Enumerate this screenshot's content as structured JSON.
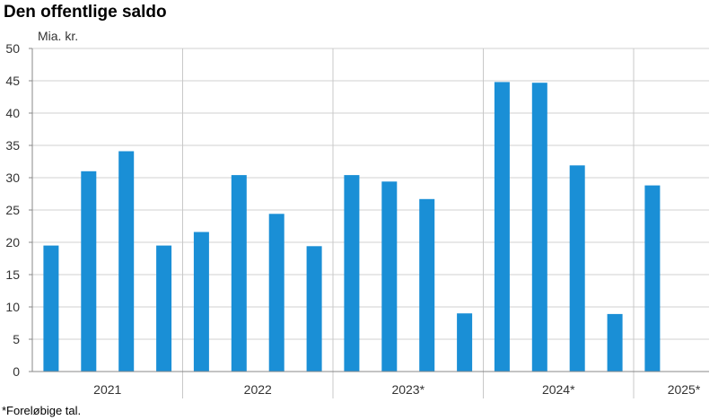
{
  "chart_data": {
    "type": "bar",
    "title": "Den offentlige saldo",
    "ylabel": "Mia. kr.",
    "xlabel": "",
    "ylim": [
      0,
      50
    ],
    "yticks": [
      0,
      5,
      10,
      15,
      20,
      25,
      30,
      35,
      40,
      45,
      50
    ],
    "grid": true,
    "bar_color": "#1a8fd6",
    "year_groups": [
      {
        "label": "2021",
        "values": [
          19.5,
          31.0,
          34.1,
          19.5
        ]
      },
      {
        "label": "2022",
        "values": [
          21.6,
          30.4,
          24.4,
          19.4
        ]
      },
      {
        "label": "2023*",
        "values": [
          30.4,
          29.4,
          26.7,
          9.0
        ]
      },
      {
        "label": "2024*",
        "values": [
          44.8,
          44.7,
          31.9,
          8.9
        ]
      },
      {
        "label": "2025*",
        "values": [
          28.8
        ]
      }
    ]
  },
  "footnote": "*Foreløbige tal."
}
